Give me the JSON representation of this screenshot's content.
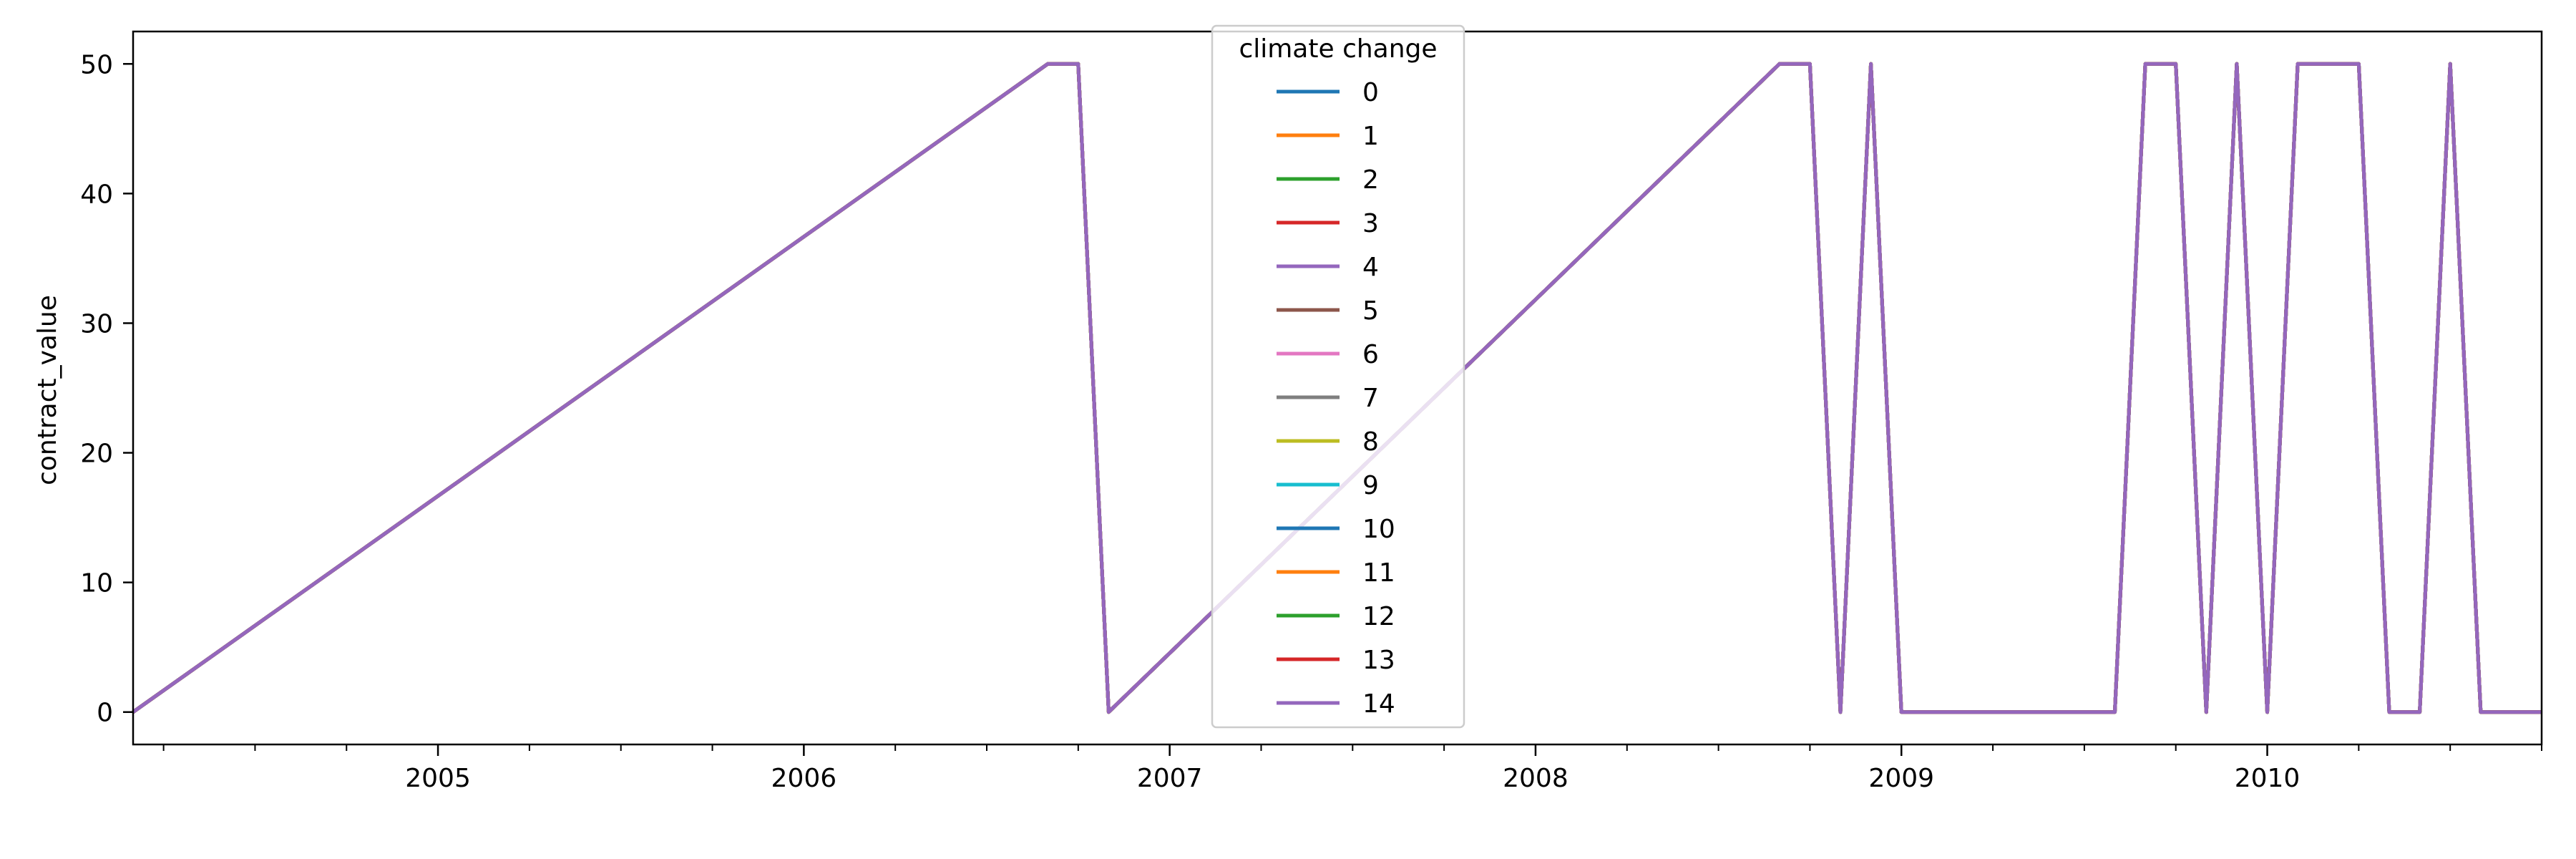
{
  "chart_data": {
    "type": "line",
    "title": "",
    "xlabel": "",
    "ylabel": "contract_value",
    "xlim": [
      "2004-03-31",
      "2010-10-31"
    ],
    "ylim": [
      -2.5,
      52.5
    ],
    "x_tick_labels": [
      "2005",
      "2006",
      "2007",
      "2008",
      "2009",
      "2010"
    ],
    "y_ticks": [
      0,
      10,
      20,
      30,
      40,
      50
    ],
    "grid": false,
    "legend": {
      "title": "climate change",
      "placement": "upper center",
      "entries": [
        {
          "name": "0",
          "color": "#1f77b4"
        },
        {
          "name": "1",
          "color": "#ff7f0e"
        },
        {
          "name": "2",
          "color": "#2ca02c"
        },
        {
          "name": "3",
          "color": "#d62728"
        },
        {
          "name": "4",
          "color": "#9467bd"
        },
        {
          "name": "5",
          "color": "#8c564b"
        },
        {
          "name": "6",
          "color": "#e377c2"
        },
        {
          "name": "7",
          "color": "#7f7f7f"
        },
        {
          "name": "8",
          "color": "#bcbd22"
        },
        {
          "name": "9",
          "color": "#17becf"
        },
        {
          "name": "10",
          "color": "#1f77b4"
        },
        {
          "name": "11",
          "color": "#ff7f0e"
        },
        {
          "name": "12",
          "color": "#2ca02c"
        },
        {
          "name": "13",
          "color": "#d62728"
        },
        {
          "name": "14",
          "color": "#9467bd"
        }
      ]
    },
    "series_note_visible": "all series overlap; only the last (14) is visible on top",
    "data": {
      "x": [
        "2004-03-31",
        "2006-09-30",
        "2006-10-31",
        "2006-11-30",
        "2008-09-30",
        "2008-10-31",
        "2008-11-30",
        "2008-12-31",
        "2009-01-31",
        "2009-08-31",
        "2009-09-30",
        "2009-10-31",
        "2009-11-30",
        "2009-12-31",
        "2010-01-31",
        "2010-02-28",
        "2010-03-31",
        "2010-04-30",
        "2010-05-31",
        "2010-06-30",
        "2010-07-31",
        "2010-08-31",
        "2010-10-31"
      ],
      "y": [
        0,
        50,
        50,
        0,
        50,
        50,
        0,
        50,
        0,
        0,
        50,
        50,
        0,
        50,
        0,
        50,
        50,
        50,
        0,
        0,
        50,
        0,
        0
      ]
    }
  }
}
